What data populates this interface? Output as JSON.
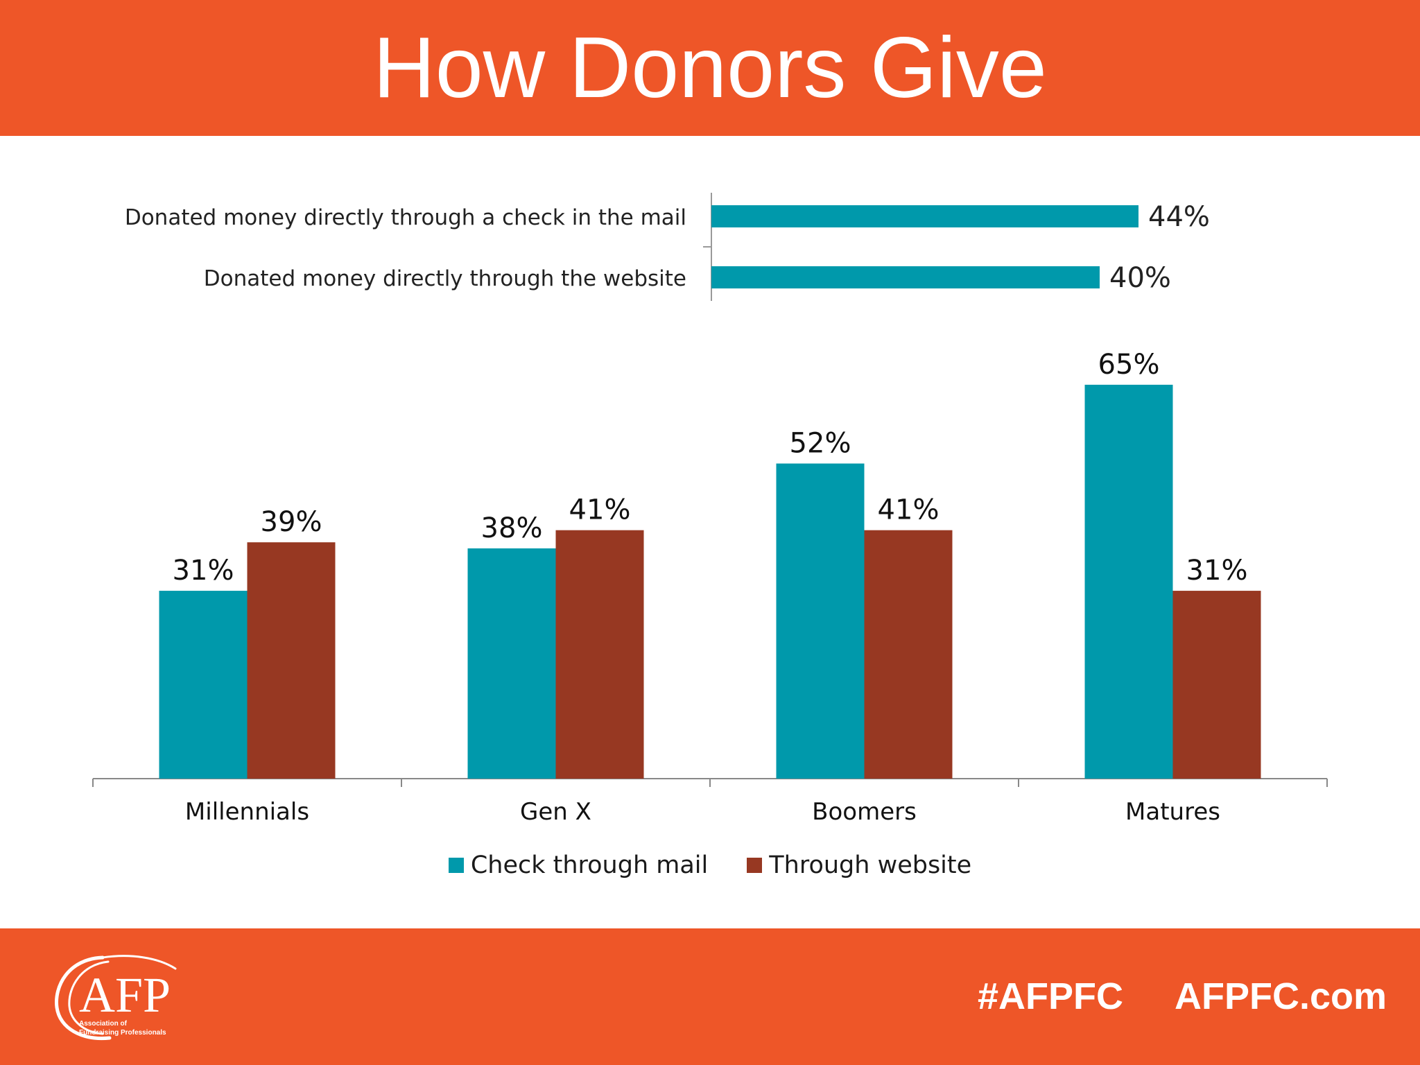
{
  "title": "How Donors Give",
  "colors": {
    "header": "#ee5628",
    "check": "#0099ab",
    "website": "#973822"
  },
  "footer": {
    "hashtag": "#AFPFC",
    "website": "AFPFC.com",
    "logo_text": "AFP",
    "logo_subtext_1": "Association of",
    "logo_subtext_2": "Fundraising Professionals"
  },
  "chart_data": [
    {
      "type": "bar",
      "orientation": "horizontal",
      "categories": [
        "Donated money directly through a check in the mail",
        "Donated money directly through the website"
      ],
      "values": [
        44,
        40
      ],
      "value_labels": [
        "44%",
        "40%"
      ],
      "grid": false
    },
    {
      "type": "bar",
      "categories": [
        "Millennials",
        "Gen X",
        "Boomers",
        "Matures"
      ],
      "series": [
        {
          "name": "Check through mail",
          "values": [
            31,
            38,
            52,
            65
          ],
          "labels": [
            "31%",
            "38%",
            "52%",
            "65%"
          ]
        },
        {
          "name": "Through website",
          "values": [
            39,
            41,
            41,
            31
          ],
          "labels": [
            "39%",
            "41%",
            "41%",
            "31%"
          ]
        }
      ],
      "ylim": [
        0,
        65
      ],
      "legend": "bottom",
      "grid": false
    }
  ]
}
